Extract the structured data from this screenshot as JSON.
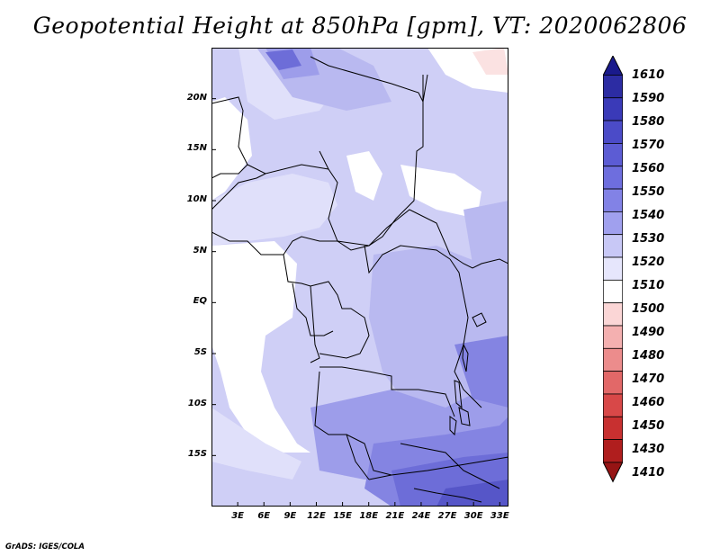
{
  "title": "Geopotential Height at 850hPa [gpm], VT: 2020062806",
  "credit": "GrADS: IGES/COLA",
  "map": {
    "lon_range": [
      0,
      34
    ],
    "lat_range": [
      -20,
      25
    ],
    "lat_ticks": [
      {
        "lat": 20,
        "label": "20N"
      },
      {
        "lat": 15,
        "label": "15N"
      },
      {
        "lat": 10,
        "label": "10N"
      },
      {
        "lat": 5,
        "label": "5N"
      },
      {
        "lat": 0,
        "label": "EQ"
      },
      {
        "lat": -5,
        "label": "5S"
      },
      {
        "lat": -10,
        "label": "10S"
      },
      {
        "lat": -15,
        "label": "15S"
      }
    ],
    "lon_ticks": [
      {
        "lon": 3,
        "label": "3E"
      },
      {
        "lon": 6,
        "label": "6E"
      },
      {
        "lon": 9,
        "label": "9E"
      },
      {
        "lon": 12,
        "label": "12E"
      },
      {
        "lon": 15,
        "label": "15E"
      },
      {
        "lon": 18,
        "label": "18E"
      },
      {
        "lon": 21,
        "label": "21E"
      },
      {
        "lon": 24,
        "label": "24E"
      },
      {
        "lon": 27,
        "label": "27E"
      },
      {
        "lon": 30,
        "label": "30E"
      },
      {
        "lon": 33,
        "label": "33E"
      }
    ]
  },
  "colorbar": {
    "levels": [
      "1610",
      "1590",
      "1580",
      "1570",
      "1560",
      "1550",
      "1540",
      "1530",
      "1520",
      "1510",
      "1500",
      "1490",
      "1480",
      "1470",
      "1460",
      "1450",
      "1430",
      "1410"
    ],
    "colors": [
      "#1a1a8c",
      "#2c2ca3",
      "#3a3ab8",
      "#4b4bc8",
      "#5c5cd4",
      "#6e6ede",
      "#8282e6",
      "#a0a0ee",
      "#c8c8f6",
      "#e6e6fc",
      "#ffffff",
      "#fbd6d6",
      "#f4b0b0",
      "#ec8c8c",
      "#e26868",
      "#d84848",
      "#c83030",
      "#b01e1e",
      "#961414"
    ]
  },
  "colors": {
    "land_white": "#ffffff",
    "c1520": "#e0e0fa",
    "c1530": "#cfcff6",
    "c1540": "#b9b9f0",
    "c1550": "#9d9dea",
    "c1560": "#8484e2",
    "c1570": "#6d6dd8",
    "c1580": "#5656c8",
    "c1510": "#fbe2e2"
  }
}
